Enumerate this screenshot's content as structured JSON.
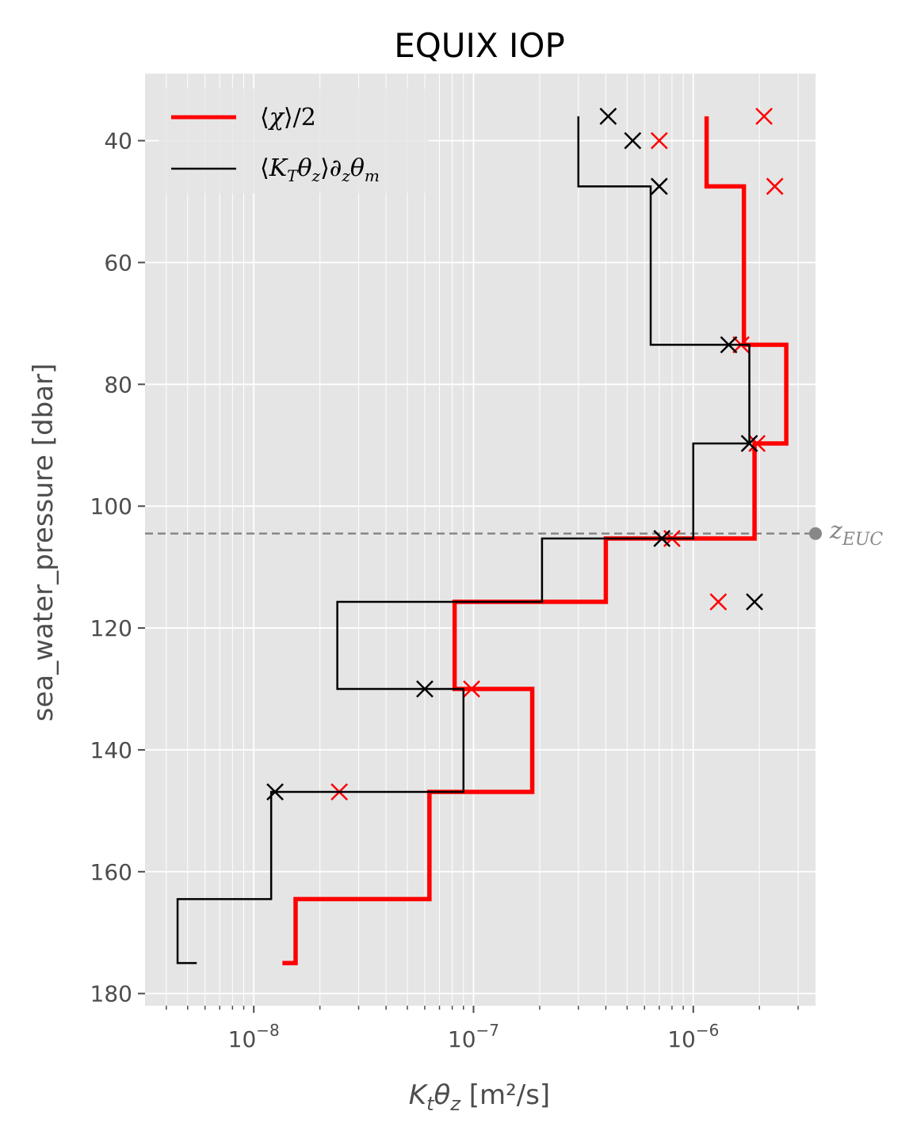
{
  "chart_data": {
    "type": "line",
    "title": "EQUIX IOP",
    "xlabel": "Kₜθ_z [m²/s]",
    "ylabel": "sea_water_pressure [dbar]",
    "xscale": "log",
    "xlim": [
      3.2e-09,
      3.6e-06
    ],
    "ylim": [
      182,
      29
    ],
    "y_inverted": true,
    "grid": true,
    "x_ticks": [
      {
        "value": 1e-08,
        "base": "10",
        "exp": "−8"
      },
      {
        "value": 1e-07,
        "base": "10",
        "exp": "−7"
      },
      {
        "value": 1e-06,
        "base": "10",
        "exp": "−6"
      }
    ],
    "y_ticks": [
      40,
      60,
      80,
      100,
      120,
      140,
      160,
      180
    ],
    "legend_position": "upper-left",
    "legend": [
      {
        "label": "⟨χ⟩/2",
        "color": "#ff0000"
      },
      {
        "label": "⟨K_Tθ_z⟩∂_zθ_m",
        "color": "#000000"
      }
    ],
    "series": [
      {
        "name": "⟨χ⟩/2",
        "color": "#ff0000",
        "steps": [
          {
            "x": 1.15e-06,
            "y_top": 36.0,
            "y_bot": 47.5
          },
          {
            "x": 1.7e-06,
            "y_top": 47.5,
            "y_bot": 73.5
          },
          {
            "x": 2.65e-06,
            "y_top": 73.5,
            "y_bot": 89.7
          },
          {
            "x": 1.9e-06,
            "y_top": 89.7,
            "y_bot": 105.3
          },
          {
            "x": 4e-07,
            "y_top": 105.3,
            "y_bot": 115.7
          },
          {
            "x": 8.2e-08,
            "y_top": 115.7,
            "y_bot": 130.0
          },
          {
            "x": 1.85e-07,
            "y_top": 130.0,
            "y_bot": 146.9
          },
          {
            "x": 6.3e-08,
            "y_top": 146.9,
            "y_bot": 164.5
          },
          {
            "x": 1.55e-08,
            "y_top": 164.5,
            "y_bot": 175.0
          }
        ],
        "end_x": 1.35e-08,
        "markers": [
          {
            "x": 2.1e-06,
            "y": 36.0
          },
          {
            "x": 7e-07,
            "y": 40.0
          },
          {
            "x": 2.35e-06,
            "y": 47.5
          },
          {
            "x": 1.65e-06,
            "y": 73.5
          },
          {
            "x": 1.95e-06,
            "y": 89.7
          },
          {
            "x": 8e-07,
            "y": 105.3
          },
          {
            "x": 1.3e-06,
            "y": 115.7
          },
          {
            "x": 9.8e-08,
            "y": 130.0
          },
          {
            "x": 2.45e-08,
            "y": 146.9
          }
        ]
      },
      {
        "name": "⟨K_Tθ_z⟩∂_zθ_m",
        "color": "#000000",
        "steps": [
          {
            "x": 3e-07,
            "y_top": 36.0,
            "y_bot": 47.5
          },
          {
            "x": 6.4e-07,
            "y_top": 47.5,
            "y_bot": 73.5
          },
          {
            "x": 1.8e-06,
            "y_top": 73.5,
            "y_bot": 89.7
          },
          {
            "x": 1e-06,
            "y_top": 89.7,
            "y_bot": 105.3
          },
          {
            "x": 2.05e-07,
            "y_top": 105.3,
            "y_bot": 115.7
          },
          {
            "x": 2.4e-08,
            "y_top": 115.7,
            "y_bot": 130.0
          },
          {
            "x": 9e-08,
            "y_top": 130.0,
            "y_bot": 146.9
          },
          {
            "x": 1.2e-08,
            "y_top": 146.9,
            "y_bot": 164.5
          },
          {
            "x": 4.5e-09,
            "y_top": 164.5,
            "y_bot": 175.0
          }
        ],
        "end_x": 5.5e-09,
        "markers": [
          {
            "x": 4.1e-07,
            "y": 36.0
          },
          {
            "x": 5.3e-07,
            "y": 40.0
          },
          {
            "x": 7e-07,
            "y": 47.5
          },
          {
            "x": 1.45e-06,
            "y": 73.5
          },
          {
            "x": 1.8e-06,
            "y": 89.7
          },
          {
            "x": 7.2e-07,
            "y": 105.3
          },
          {
            "x": 1.9e-06,
            "y": 115.7
          },
          {
            "x": 6e-08,
            "y": 130.0
          },
          {
            "x": 1.25e-08,
            "y": 146.9
          }
        ]
      }
    ],
    "annotation": {
      "label": "z_EUC",
      "y": 104.5,
      "marker_x": 3.6e-06,
      "color": "#888888"
    }
  }
}
